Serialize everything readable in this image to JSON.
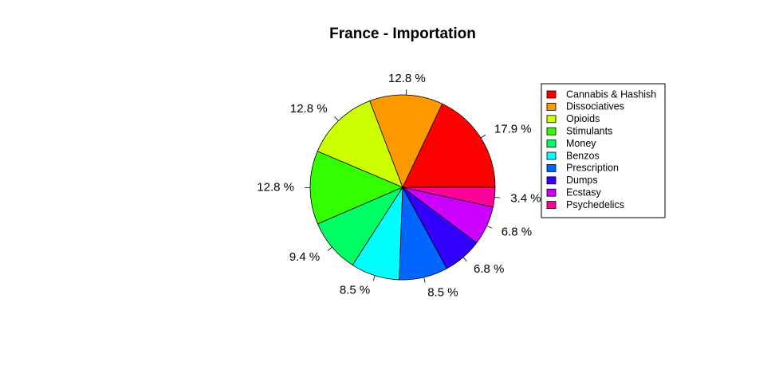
{
  "chart_data": {
    "type": "pie",
    "title": "France - Importation",
    "categories": [
      "Cannabis & Hashish",
      "Dissociatives",
      "Opioids",
      "Stimulants",
      "Money",
      "Benzos",
      "Prescription",
      "Dumps",
      "Ecstasy",
      "Psychedelics"
    ],
    "values": [
      17.9,
      12.8,
      12.8,
      12.8,
      9.4,
      8.5,
      8.5,
      6.8,
      6.8,
      3.4
    ],
    "labels": [
      "17.9 %",
      "12.8 %",
      "12.8 %",
      "12.8 %",
      "9.4 %",
      "8.5 %",
      "8.5 %",
      "6.8 %",
      "6.8 %",
      "3.4 %"
    ],
    "colors": [
      "#FF0000",
      "#FF9900",
      "#CCFF00",
      "#33FF00",
      "#00FF66",
      "#00FFFF",
      "#0066FF",
      "#3300FF",
      "#CC00FF",
      "#FF0099"
    ],
    "start": "3 o'clock",
    "direction": "counterclockwise",
    "legend_position": "right"
  }
}
